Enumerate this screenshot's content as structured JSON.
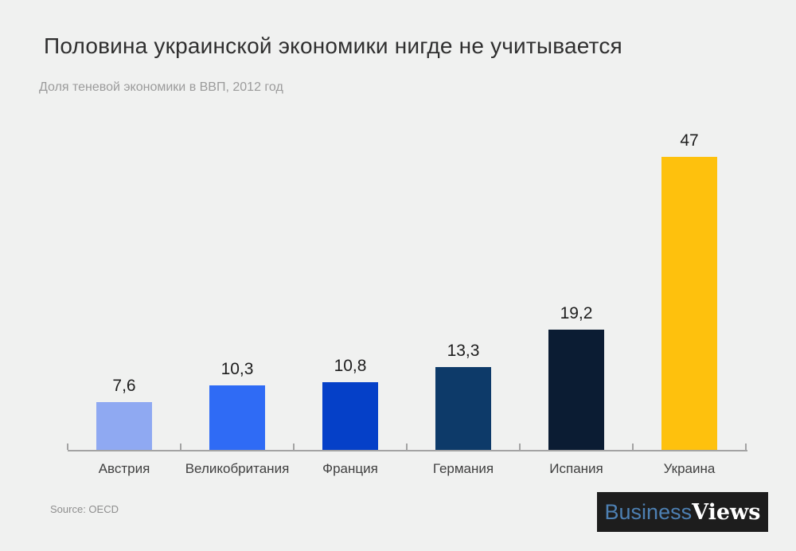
{
  "page": {
    "background": "#f0f1f0"
  },
  "chart_data": {
    "type": "bar",
    "title": "Половина украинской экономики нигде не учитывается",
    "subtitle": "Доля теневой экономики в ВВП, 2012 год",
    "categories": [
      "Австрия",
      "Великобритания",
      "Франция",
      "Германия",
      "Испания",
      "Украина"
    ],
    "values": [
      7.6,
      10.3,
      10.8,
      13.3,
      19.2,
      47
    ],
    "value_labels": [
      "7,6",
      "10,3",
      "10,8",
      "13,3",
      "19,2",
      "47"
    ],
    "bar_colors": [
      "#8fa9f2",
      "#2f6bf5",
      "#0540c8",
      "#0d3a69",
      "#0b1c33",
      "#fec10d"
    ],
    "xlabel": "",
    "ylabel": "",
    "ylim": [
      0,
      50
    ],
    "grid": false,
    "legend": "none",
    "axis_color": "#a3a3a3",
    "value_label_color": "#1d1d1d",
    "category_label_color": "#404040"
  },
  "footer": {
    "source": "Source: OECD",
    "logo": {
      "part1": "Business",
      "part2": "Views",
      "part1_color": "#4d80b3",
      "part2_color": "#ffffff",
      "background": "#1d1d1d"
    }
  }
}
